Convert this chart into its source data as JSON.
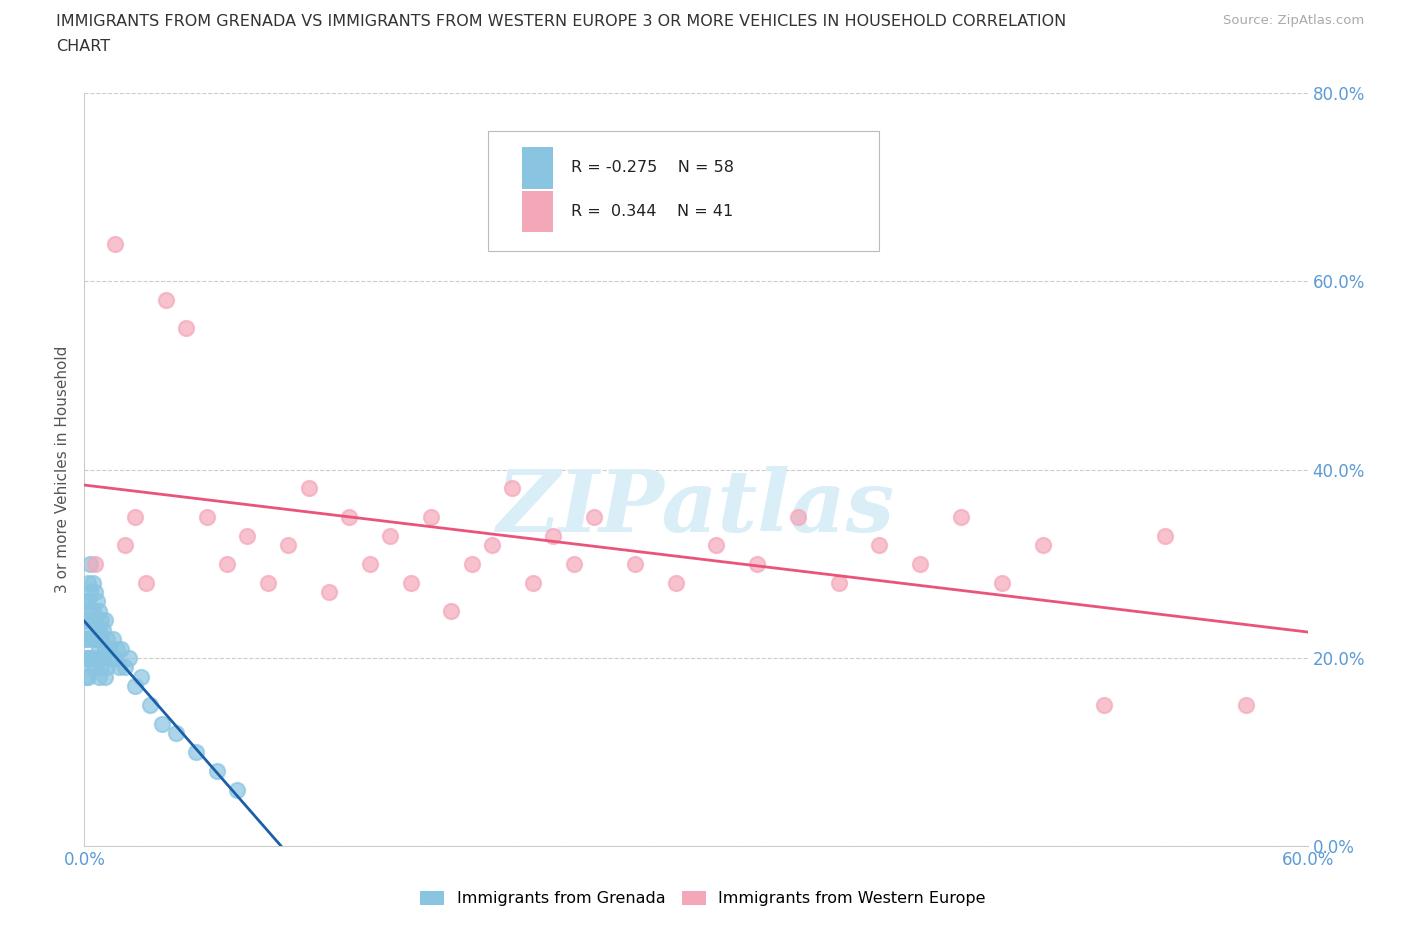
{
  "title_line1": "IMMIGRANTS FROM GRENADA VS IMMIGRANTS FROM WESTERN EUROPE 3 OR MORE VEHICLES IN HOUSEHOLD CORRELATION",
  "title_line2": "CHART",
  "source_text": "Source: ZipAtlas.com",
  "ylabel": "3 or more Vehicles in Household",
  "xlim": [
    0.0,
    0.6
  ],
  "ylim": [
    0.0,
    0.8
  ],
  "xticks": [
    0.0,
    0.1,
    0.2,
    0.3,
    0.4,
    0.5,
    0.6
  ],
  "xticklabels": [
    "0.0%",
    "",
    "",
    "",
    "",
    "",
    "60.0%"
  ],
  "yticks_right": [
    0.0,
    0.2,
    0.4,
    0.6,
    0.8
  ],
  "yticklabels_right": [
    "0.0%",
    "20.0%",
    "40.0%",
    "60.0%",
    "80.0%"
  ],
  "grenada_color": "#89c4e1",
  "western_color": "#f4a7b9",
  "grenada_line_color": "#1a5fa8",
  "western_line_color": "#e8547a",
  "watermark": "ZIPatlas",
  "watermark_color": "#daeef8",
  "tick_color": "#5b9bd5",
  "legend_R_grenada": "R = -0.275",
  "legend_N_grenada": "N = 58",
  "legend_R_western": "R =  0.344",
  "legend_N_western": "N = 41",
  "grenada_x": [
    0.001,
    0.001,
    0.001,
    0.001,
    0.001,
    0.002,
    0.002,
    0.002,
    0.002,
    0.002,
    0.002,
    0.003,
    0.003,
    0.003,
    0.003,
    0.003,
    0.004,
    0.004,
    0.004,
    0.004,
    0.005,
    0.005,
    0.005,
    0.005,
    0.006,
    0.006,
    0.006,
    0.007,
    0.007,
    0.007,
    0.007,
    0.008,
    0.008,
    0.008,
    0.009,
    0.009,
    0.01,
    0.01,
    0.01,
    0.011,
    0.011,
    0.012,
    0.013,
    0.014,
    0.015,
    0.016,
    0.017,
    0.018,
    0.02,
    0.022,
    0.025,
    0.028,
    0.032,
    0.038,
    0.045,
    0.055,
    0.065,
    0.075
  ],
  "grenada_y": [
    0.26,
    0.24,
    0.22,
    0.2,
    0.18,
    0.28,
    0.26,
    0.24,
    0.22,
    0.2,
    0.18,
    0.3,
    0.27,
    0.25,
    0.23,
    0.2,
    0.28,
    0.25,
    0.22,
    0.19,
    0.27,
    0.24,
    0.22,
    0.19,
    0.26,
    0.23,
    0.2,
    0.25,
    0.23,
    0.21,
    0.18,
    0.24,
    0.22,
    0.19,
    0.23,
    0.2,
    0.24,
    0.21,
    0.18,
    0.22,
    0.19,
    0.21,
    0.2,
    0.22,
    0.2,
    0.21,
    0.19,
    0.21,
    0.19,
    0.2,
    0.17,
    0.18,
    0.15,
    0.13,
    0.12,
    0.1,
    0.08,
    0.06
  ],
  "western_x": [
    0.005,
    0.015,
    0.02,
    0.025,
    0.03,
    0.04,
    0.05,
    0.06,
    0.07,
    0.08,
    0.09,
    0.1,
    0.11,
    0.12,
    0.13,
    0.14,
    0.15,
    0.16,
    0.17,
    0.18,
    0.19,
    0.2,
    0.21,
    0.22,
    0.23,
    0.24,
    0.25,
    0.27,
    0.29,
    0.31,
    0.33,
    0.35,
    0.37,
    0.39,
    0.41,
    0.43,
    0.45,
    0.47,
    0.5,
    0.53,
    0.57
  ],
  "western_y": [
    0.3,
    0.64,
    0.32,
    0.35,
    0.28,
    0.58,
    0.55,
    0.35,
    0.3,
    0.33,
    0.28,
    0.32,
    0.38,
    0.27,
    0.35,
    0.3,
    0.33,
    0.28,
    0.35,
    0.25,
    0.3,
    0.32,
    0.38,
    0.28,
    0.33,
    0.3,
    0.35,
    0.3,
    0.28,
    0.32,
    0.3,
    0.35,
    0.28,
    0.32,
    0.3,
    0.35,
    0.28,
    0.32,
    0.15,
    0.33,
    0.15
  ]
}
